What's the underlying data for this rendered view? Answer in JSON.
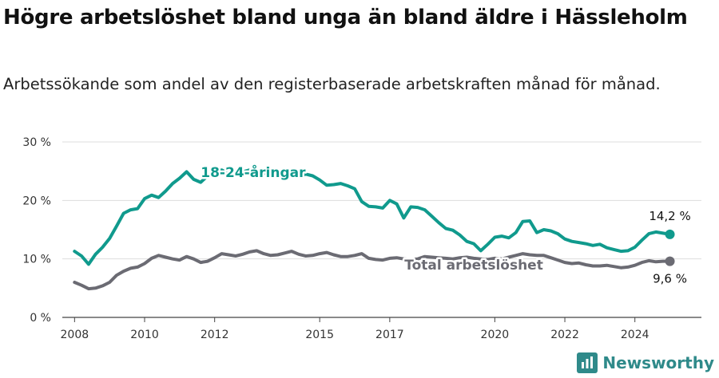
{
  "title": "Högre arbetslöshet bland unga än bland äldre i Hässleholm",
  "subtitle": "Arbetssökande som andel av den registerbaserade arbetskraften månad för månad.",
  "brand": {
    "name": "Newsworthy",
    "logo_icon": "bar-chart-speech-bubble-icon"
  },
  "chart_data": {
    "type": "line",
    "y_ticks": [
      "0 %",
      "10 %",
      "20 %",
      "30 %"
    ],
    "x_ticks": [
      "2008",
      "2010",
      "2012",
      "2015",
      "2017",
      "2020",
      "2022",
      "2024"
    ],
    "ylim": [
      0,
      30
    ],
    "xlim": [
      2007.65,
      2025.9
    ],
    "grid": true,
    "series": [
      {
        "name": "18-24-åringar",
        "color": "#109a8d",
        "end_label": "14,2 %",
        "points": [
          [
            2008.0,
            11.3
          ],
          [
            2008.2,
            10.5
          ],
          [
            2008.4,
            9.1
          ],
          [
            2008.6,
            10.8
          ],
          [
            2008.8,
            12.0
          ],
          [
            2009.0,
            13.5
          ],
          [
            2009.2,
            15.6
          ],
          [
            2009.4,
            17.8
          ],
          [
            2009.6,
            18.4
          ],
          [
            2009.8,
            18.6
          ],
          [
            2010.0,
            20.3
          ],
          [
            2010.2,
            20.9
          ],
          [
            2010.4,
            20.5
          ],
          [
            2010.6,
            21.6
          ],
          [
            2010.8,
            22.9
          ],
          [
            2011.0,
            23.8
          ],
          [
            2011.2,
            24.9
          ],
          [
            2011.4,
            23.6
          ],
          [
            2011.6,
            23.1
          ],
          [
            2011.8,
            24.2
          ],
          [
            2012.0,
            24.9
          ],
          [
            2012.2,
            25.2
          ],
          [
            2012.4,
            24.6
          ],
          [
            2012.6,
            25.1
          ],
          [
            2012.8,
            24.9
          ],
          [
            2013.0,
            25.2
          ],
          [
            2013.2,
            24.8
          ],
          [
            2013.4,
            24.6
          ],
          [
            2013.6,
            24.9
          ],
          [
            2013.8,
            24.3
          ],
          [
            2014.0,
            24.6
          ],
          [
            2014.2,
            24.8
          ],
          [
            2014.4,
            24.1
          ],
          [
            2014.6,
            24.5
          ],
          [
            2014.8,
            24.2
          ],
          [
            2015.0,
            23.5
          ],
          [
            2015.2,
            22.6
          ],
          [
            2015.4,
            22.7
          ],
          [
            2015.6,
            22.9
          ],
          [
            2015.8,
            22.5
          ],
          [
            2016.0,
            22.0
          ],
          [
            2016.2,
            19.8
          ],
          [
            2016.4,
            19.0
          ],
          [
            2016.6,
            18.9
          ],
          [
            2016.8,
            18.7
          ],
          [
            2017.0,
            20.0
          ],
          [
            2017.2,
            19.4
          ],
          [
            2017.4,
            17.0
          ],
          [
            2017.6,
            18.9
          ],
          [
            2017.8,
            18.8
          ],
          [
            2018.0,
            18.4
          ],
          [
            2018.2,
            17.3
          ],
          [
            2018.4,
            16.2
          ],
          [
            2018.6,
            15.2
          ],
          [
            2018.8,
            14.9
          ],
          [
            2019.0,
            14.1
          ],
          [
            2019.2,
            13.0
          ],
          [
            2019.4,
            12.6
          ],
          [
            2019.6,
            11.4
          ],
          [
            2019.8,
            12.5
          ],
          [
            2020.0,
            13.7
          ],
          [
            2020.2,
            13.9
          ],
          [
            2020.4,
            13.6
          ],
          [
            2020.6,
            14.5
          ],
          [
            2020.8,
            16.4
          ],
          [
            2021.0,
            16.5
          ],
          [
            2021.2,
            14.5
          ],
          [
            2021.4,
            15.0
          ],
          [
            2021.6,
            14.8
          ],
          [
            2021.8,
            14.3
          ],
          [
            2022.0,
            13.4
          ],
          [
            2022.2,
            13.0
          ],
          [
            2022.4,
            12.8
          ],
          [
            2022.6,
            12.6
          ],
          [
            2022.8,
            12.3
          ],
          [
            2023.0,
            12.5
          ],
          [
            2023.2,
            11.9
          ],
          [
            2023.4,
            11.6
          ],
          [
            2023.6,
            11.3
          ],
          [
            2023.8,
            11.4
          ],
          [
            2024.0,
            12.0
          ],
          [
            2024.2,
            13.2
          ],
          [
            2024.4,
            14.3
          ],
          [
            2024.6,
            14.6
          ],
          [
            2024.8,
            14.4
          ],
          [
            2025.0,
            14.2
          ]
        ]
      },
      {
        "name": "Total arbetslöshet",
        "color": "#6b6b73",
        "end_label": "9,6 %",
        "points": [
          [
            2008.0,
            6.0
          ],
          [
            2008.2,
            5.5
          ],
          [
            2008.4,
            4.9
          ],
          [
            2008.6,
            5.0
          ],
          [
            2008.8,
            5.4
          ],
          [
            2009.0,
            6.0
          ],
          [
            2009.2,
            7.2
          ],
          [
            2009.4,
            7.9
          ],
          [
            2009.6,
            8.4
          ],
          [
            2009.8,
            8.6
          ],
          [
            2010.0,
            9.2
          ],
          [
            2010.2,
            10.1
          ],
          [
            2010.4,
            10.6
          ],
          [
            2010.6,
            10.3
          ],
          [
            2010.8,
            10.0
          ],
          [
            2011.0,
            9.8
          ],
          [
            2011.2,
            10.4
          ],
          [
            2011.4,
            10.0
          ],
          [
            2011.6,
            9.4
          ],
          [
            2011.8,
            9.6
          ],
          [
            2012.0,
            10.2
          ],
          [
            2012.2,
            10.9
          ],
          [
            2012.4,
            10.7
          ],
          [
            2012.6,
            10.5
          ],
          [
            2012.8,
            10.8
          ],
          [
            2013.0,
            11.2
          ],
          [
            2013.2,
            11.4
          ],
          [
            2013.4,
            10.9
          ],
          [
            2013.6,
            10.6
          ],
          [
            2013.8,
            10.7
          ],
          [
            2014.0,
            11.0
          ],
          [
            2014.2,
            11.3
          ],
          [
            2014.4,
            10.8
          ],
          [
            2014.6,
            10.5
          ],
          [
            2014.8,
            10.6
          ],
          [
            2015.0,
            10.9
          ],
          [
            2015.2,
            11.1
          ],
          [
            2015.4,
            10.7
          ],
          [
            2015.6,
            10.4
          ],
          [
            2015.8,
            10.4
          ],
          [
            2016.0,
            10.6
          ],
          [
            2016.2,
            10.9
          ],
          [
            2016.4,
            10.1
          ],
          [
            2016.6,
            9.9
          ],
          [
            2016.8,
            9.8
          ],
          [
            2017.0,
            10.1
          ],
          [
            2017.2,
            10.2
          ],
          [
            2017.4,
            10.0
          ],
          [
            2017.6,
            9.9
          ],
          [
            2017.8,
            10.0
          ],
          [
            2018.0,
            10.4
          ],
          [
            2018.2,
            10.3
          ],
          [
            2018.4,
            10.2
          ],
          [
            2018.6,
            10.1
          ],
          [
            2018.8,
            10.0
          ],
          [
            2019.0,
            10.2
          ],
          [
            2019.2,
            10.3
          ],
          [
            2019.4,
            10.1
          ],
          [
            2019.6,
            10.0
          ],
          [
            2019.8,
            9.9
          ],
          [
            2020.0,
            10.1
          ],
          [
            2020.2,
            10.0
          ],
          [
            2020.4,
            10.3
          ],
          [
            2020.6,
            10.6
          ],
          [
            2020.8,
            10.9
          ],
          [
            2021.0,
            10.7
          ],
          [
            2021.2,
            10.6
          ],
          [
            2021.4,
            10.6
          ],
          [
            2021.6,
            10.2
          ],
          [
            2021.8,
            9.8
          ],
          [
            2022.0,
            9.4
          ],
          [
            2022.2,
            9.2
          ],
          [
            2022.4,
            9.3
          ],
          [
            2022.6,
            9.0
          ],
          [
            2022.8,
            8.8
          ],
          [
            2023.0,
            8.8
          ],
          [
            2023.2,
            8.9
          ],
          [
            2023.4,
            8.7
          ],
          [
            2023.6,
            8.5
          ],
          [
            2023.8,
            8.6
          ],
          [
            2024.0,
            8.9
          ],
          [
            2024.2,
            9.4
          ],
          [
            2024.4,
            9.7
          ],
          [
            2024.6,
            9.5
          ],
          [
            2024.8,
            9.6
          ],
          [
            2025.0,
            9.6
          ]
        ]
      }
    ]
  }
}
